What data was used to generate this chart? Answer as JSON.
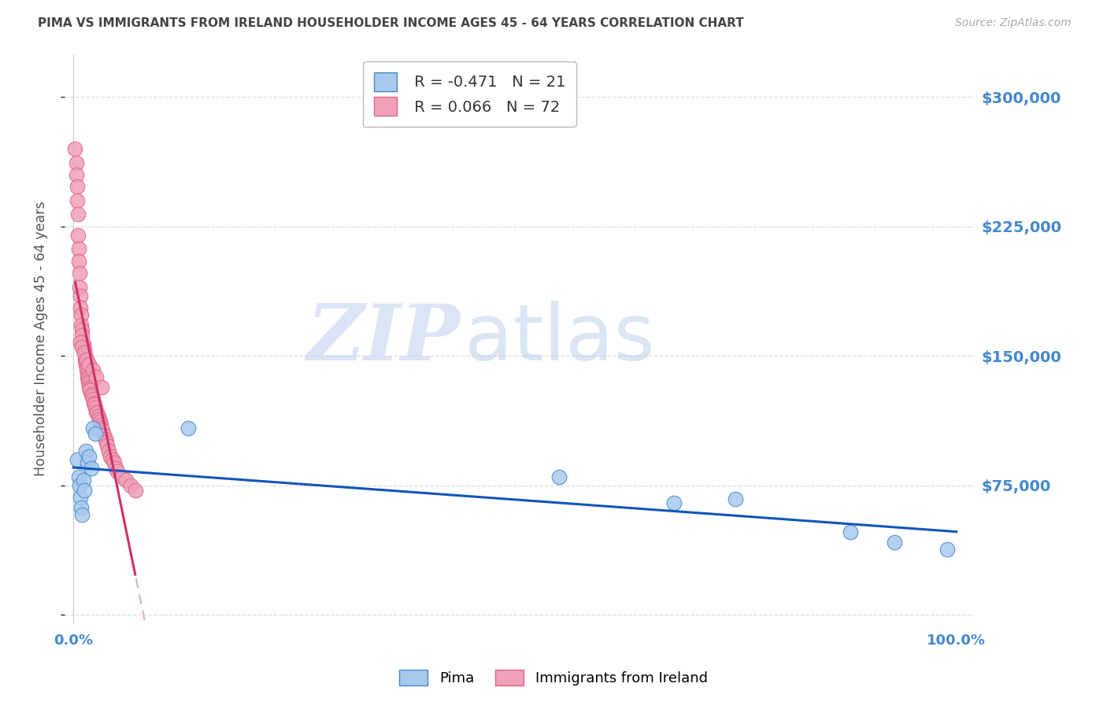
{
  "title": "PIMA VS IMMIGRANTS FROM IRELAND HOUSEHOLDER INCOME AGES 45 - 64 YEARS CORRELATION CHART",
  "source": "Source: ZipAtlas.com",
  "ylabel": "Householder Income Ages 45 - 64 years",
  "xlim": [
    -0.01,
    1.02
  ],
  "ylim": [
    -5000,
    325000
  ],
  "yticks": [
    0,
    75000,
    150000,
    225000,
    300000
  ],
  "xtick_positions": [
    0,
    0.1,
    0.2,
    0.3,
    0.4,
    0.5,
    0.6,
    0.7,
    0.8,
    0.9,
    1.0
  ],
  "xtick_labels": [
    "0.0%",
    "",
    "",
    "",
    "",
    "",
    "",
    "",
    "",
    "",
    "100.0%"
  ],
  "pima_color": "#a8c8ee",
  "ireland_color": "#f0a0b8",
  "pima_edge_color": "#4488cc",
  "ireland_edge_color": "#dd6688",
  "pima_line_color": "#1155bb",
  "ireland_solid_color": "#cc3366",
  "ireland_dashed_color": "#e0aac0",
  "axis_label_color": "#4488cc",
  "title_color": "#444444",
  "grid_color": "#dddddd",
  "background_color": "#ffffff",
  "watermark_zip_color": "#c8d8f0",
  "watermark_atlas_color": "#b0c8e8",
  "pima_R": -0.471,
  "pima_N": 21,
  "ireland_R": 0.066,
  "ireland_N": 72,
  "pima_x": [
    0.004,
    0.006,
    0.007,
    0.008,
    0.009,
    0.01,
    0.011,
    0.012,
    0.014,
    0.016,
    0.018,
    0.02,
    0.022,
    0.025,
    0.13,
    0.55,
    0.68,
    0.75,
    0.88,
    0.93,
    0.99
  ],
  "pima_y": [
    90000,
    80000,
    75000,
    68000,
    62000,
    58000,
    78000,
    72000,
    95000,
    88000,
    92000,
    85000,
    108000,
    105000,
    108000,
    80000,
    65000,
    67000,
    48000,
    42000,
    38000
  ],
  "ireland_x": [
    0.002,
    0.003,
    0.003,
    0.004,
    0.004,
    0.005,
    0.005,
    0.006,
    0.006,
    0.007,
    0.007,
    0.008,
    0.008,
    0.009,
    0.009,
    0.01,
    0.01,
    0.01,
    0.011,
    0.011,
    0.012,
    0.012,
    0.013,
    0.013,
    0.014,
    0.014,
    0.015,
    0.015,
    0.016,
    0.016,
    0.017,
    0.017,
    0.018,
    0.018,
    0.019,
    0.019,
    0.02,
    0.021,
    0.022,
    0.023,
    0.024,
    0.025,
    0.026,
    0.027,
    0.028,
    0.029,
    0.03,
    0.031,
    0.032,
    0.033,
    0.035,
    0.036,
    0.037,
    0.038,
    0.04,
    0.042,
    0.044,
    0.046,
    0.048,
    0.05,
    0.055,
    0.06,
    0.065,
    0.07,
    0.008,
    0.01,
    0.012,
    0.015,
    0.018,
    0.022,
    0.026,
    0.032
  ],
  "ireland_y": [
    270000,
    262000,
    255000,
    248000,
    240000,
    232000,
    220000,
    212000,
    205000,
    198000,
    190000,
    185000,
    178000,
    174000,
    168000,
    165000,
    162000,
    158000,
    157000,
    155000,
    154000,
    152000,
    150000,
    148000,
    147000,
    145000,
    144000,
    142000,
    140000,
    138000,
    137000,
    135000,
    134000,
    132000,
    131000,
    130000,
    128000,
    127000,
    125000,
    123000,
    122000,
    120000,
    118000,
    117000,
    115000,
    113000,
    112000,
    110000,
    108000,
    107000,
    104000,
    102000,
    100000,
    98000,
    95000,
    92000,
    90000,
    88000,
    85000,
    83000,
    80000,
    78000,
    75000,
    72000,
    158000,
    155000,
    152000,
    148000,
    145000,
    142000,
    138000,
    132000
  ]
}
